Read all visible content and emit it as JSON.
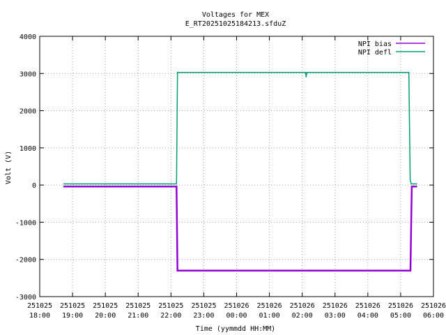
{
  "chart_data": {
    "type": "line",
    "title": "Voltages for MEX",
    "subtitle": "E_RT20251025184213.sfduZ",
    "xlabel": "Time (yymmdd HH:MM)",
    "ylabel": "Volt (V)",
    "xlim_hours": [
      18,
      30
    ],
    "ylim": [
      -3000,
      4000
    ],
    "yticks": [
      -3000,
      -2000,
      -1000,
      0,
      1000,
      2000,
      3000,
      4000
    ],
    "xticks": [
      {
        "hour": 18,
        "date": "251025",
        "time": "18:00"
      },
      {
        "hour": 19,
        "date": "251025",
        "time": "19:00"
      },
      {
        "hour": 20,
        "date": "251025",
        "time": "20:00"
      },
      {
        "hour": 21,
        "date": "251025",
        "time": "21:00"
      },
      {
        "hour": 22,
        "date": "251025",
        "time": "22:00"
      },
      {
        "hour": 23,
        "date": "251025",
        "time": "23:00"
      },
      {
        "hour": 24,
        "date": "251026",
        "time": "00:00"
      },
      {
        "hour": 25,
        "date": "251026",
        "time": "01:00"
      },
      {
        "hour": 26,
        "date": "251026",
        "time": "02:00"
      },
      {
        "hour": 27,
        "date": "251026",
        "time": "03:00"
      },
      {
        "hour": 28,
        "date": "251026",
        "time": "04:00"
      },
      {
        "hour": 29,
        "date": "251026",
        "time": "05:00"
      },
      {
        "hour": 30,
        "date": "251026",
        "time": "06:00"
      }
    ],
    "grid": true,
    "legend_position": "top-right",
    "series": [
      {
        "name": "NPI bias",
        "color": "#9400d3",
        "points": [
          [
            18.72,
            -40
          ],
          [
            22.17,
            -40
          ],
          [
            22.2,
            -2300
          ],
          [
            29.3,
            -2300
          ],
          [
            29.34,
            -40
          ],
          [
            29.5,
            -40
          ]
        ]
      },
      {
        "name": "NPI defl",
        "color": "#009e73",
        "points": [
          [
            18.72,
            30
          ],
          [
            22.17,
            30
          ],
          [
            22.2,
            3030
          ],
          [
            26.1,
            3030
          ],
          [
            26.12,
            2900
          ],
          [
            26.14,
            3030
          ],
          [
            29.25,
            3030
          ],
          [
            29.29,
            150
          ],
          [
            29.32,
            30
          ],
          [
            29.5,
            30
          ]
        ]
      }
    ]
  }
}
